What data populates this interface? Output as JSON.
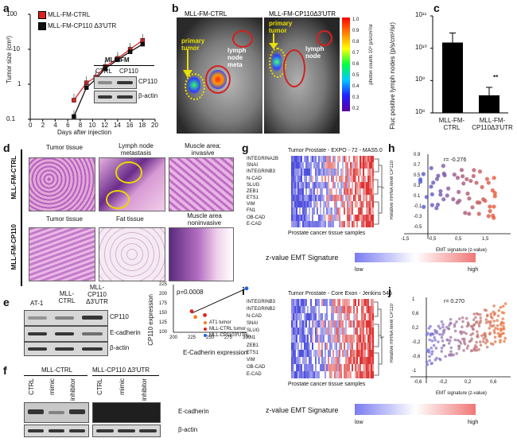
{
  "panels": {
    "a": "a",
    "b": "b",
    "c": "c",
    "d": "d",
    "e": "e",
    "f": "f",
    "g": "g",
    "h": "h",
    "i": "i",
    "j": "j"
  },
  "colors": {
    "ctrl": "#e02020",
    "cp110": "#111111",
    "red": "#d4242a",
    "blue": "#3a46d0",
    "green_arrow": "#e8e000"
  },
  "a": {
    "ylabel": "Tumor size (cm³)",
    "xlabel": "Days after injection",
    "legend": [
      "MLL-FM-CTRL",
      "MLL-FM-CP110 Δ3′UTR"
    ],
    "yticks": [
      "0.1",
      "1",
      "10",
      "100"
    ],
    "xticks": [
      "0",
      "2",
      "4",
      "6",
      "8",
      "10",
      "12",
      "14",
      "16",
      "18",
      "20"
    ],
    "inset_title": "MLL-FM",
    "inset_cols": [
      "CTRL",
      "CP110"
    ],
    "inset_rows": [
      "CP110",
      "β-actin"
    ],
    "chart_data": {
      "type": "line",
      "x": [
        7,
        9,
        10.5,
        12,
        14,
        16,
        18
      ],
      "series": [
        {
          "name": "MLL-FM-CTRL",
          "values": [
            0.35,
            1.1,
            1.6,
            3.2,
            5.5,
            10,
            18
          ]
        },
        {
          "name": "MLL-FM-CP110 Δ3′UTR",
          "values": [
            0.12,
            0.8,
            1.4,
            2.8,
            5,
            8.5,
            14
          ]
        }
      ],
      "ylim": [
        0.1,
        100
      ],
      "xlim": [
        0,
        20
      ],
      "yscale": "log"
    }
  },
  "b": {
    "label_ctrl": "MLL-FM-CTRL",
    "label_cp110": "MLL-FM-CP110Δ3′UTR",
    "primary_tumor": "primary tumor",
    "lymph_node_meta": "lymph node meta",
    "lymph_node": "lymph node",
    "colorbar_ticks": [
      "1.0",
      "0.9",
      "0.8",
      "0.7",
      "0.6",
      "0.5",
      "0.4",
      "0.3",
      "0.2"
    ],
    "colorbar_label": "photon counts 10⁸ p/s/cm²/sr"
  },
  "c": {
    "ylabel": "Fluc positive lymph nodes (p/s/cm²/sr)",
    "yticks": [
      "10⁸",
      "10⁹",
      "10¹⁰",
      "10¹¹"
    ],
    "categories": [
      "MLL-FM-CTRL",
      "MLL-FM-CP110Δ3′UTR"
    ],
    "sig": "**",
    "chart_data": {
      "type": "bar",
      "categories": [
        "MLL-FM-CTRL",
        "MLL-FM-CP110Δ3′UTR"
      ],
      "values": [
        15000000000.0,
        350000000.0
      ],
      "ylim": [
        100000000.0,
        100000000000.0
      ],
      "yscale": "log"
    }
  },
  "d": {
    "row_labels": [
      "MLL-FM-CTRL",
      "MLL-FM-CP110"
    ],
    "titles_top": [
      "Tumor tissue",
      "Lymph node metastasis",
      "Muscle area: invasive"
    ],
    "titles_bottom": [
      "Tumor tissue",
      "Fat tissue",
      "Muscle area noninvasive"
    ]
  },
  "e": {
    "cols": [
      "AT-1",
      "MLL-CTRL",
      "MLL-CP110 Δ3′UTR"
    ],
    "rows": [
      "CP110",
      "E-cadherin",
      "β-actin"
    ],
    "pvalue": "p=0.0008",
    "legend": [
      "AT1 tumor",
      "MLL-CTRL tumor",
      "MLL-CP1103′UTR"
    ],
    "legend_colors": [
      "#f08020",
      "#e02020",
      "#2060e0"
    ],
    "xlabel": "E-Cadherin expression",
    "ylabel": "CP110 expression",
    "xticks": [
      "200",
      "225",
      "250",
      "275",
      "300"
    ],
    "yticks": [
      "100",
      "125",
      "150",
      "175",
      "200",
      "225"
    ],
    "chart_data": {
      "type": "scatter",
      "x": [
        225,
        230,
        243,
        300
      ],
      "y": [
        155,
        140,
        145,
        215
      ],
      "xlim": [
        200,
        300
      ],
      "ylim": [
        100,
        225
      ]
    }
  },
  "f": {
    "group1": "MLL-CTRL",
    "group2": "MLL-CP110 Δ3′UTR",
    "cols": [
      "CTRL",
      "mimic",
      "inhibitor",
      "CTRL",
      "mimic",
      "inhibitor"
    ],
    "rows": [
      "E-cadherin",
      "β-actin"
    ]
  },
  "g": {
    "title": "Tumor Prostate - EXPO - 72 - MAS5.0",
    "genes": [
      "INTEGRINA2B",
      "SNAI",
      "INTEGRINB3",
      "N-CAD",
      "SLUG",
      "ZEB1",
      "ETS1",
      "VIM",
      "FN1",
      "OB-CAD",
      "E-CAD"
    ],
    "xlabel": "Prostate cancer tissue samples",
    "colorbar_title": "z-value EMT Signature",
    "low": "low",
    "high": "high"
  },
  "h": {
    "r": "r= -0.276",
    "ylabel": "Relative mRNA level CP110",
    "xlabel": "EMT signature (z-value)",
    "xticks": [
      "-1,5",
      "-0,5",
      "0,5",
      "1,5"
    ],
    "yticks": [
      "0.9",
      "0.7",
      "0.5",
      "0.3",
      "0.1",
      "-0.1",
      "-0.3",
      "-0.5"
    ]
  },
  "i": {
    "title": "Tumor Prostate - Core Exon - Jenkins 545",
    "genes": [
      "INTEGRINB3",
      "INTEGRINB2",
      "N-CAD",
      "SNAI",
      "SLUG",
      "FN1",
      "ZEB1",
      "ETS1",
      "VIM",
      "OB-CAD",
      "E-CAD"
    ],
    "xlabel": "Prostate cancer tissue samples",
    "colorbar_title": "z-value EMT Signature",
    "low": "low",
    "high": "high"
  },
  "j": {
    "r": "r= 0.270",
    "ylabel": "Relative mRNA level CP110",
    "xlabel": "EMT signature (z-value)",
    "xticks": [
      "-0,6",
      "-0,2",
      "0,2",
      "0,6"
    ],
    "yticks": [
      "1",
      "0,6",
      "0,2",
      "-0,2",
      "-0,6",
      "-1"
    ]
  }
}
